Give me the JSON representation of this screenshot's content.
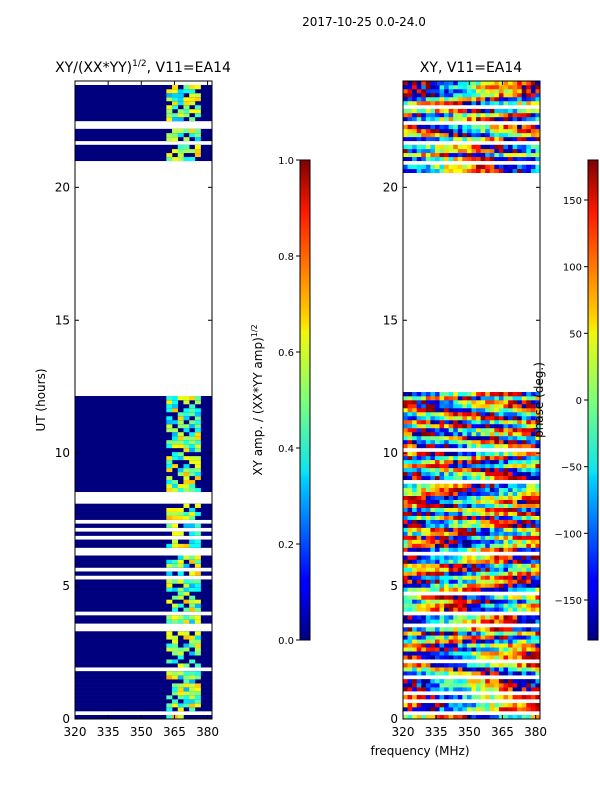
{
  "suptitle": "2017-10-25 0.0-24.0",
  "chart_data": [
    {
      "type": "heatmap",
      "title_main": "XY/(XX*YY)",
      "title_sup": "1/2",
      "title_suffix": ", V11=EA14",
      "xlabel": "",
      "ylabel": "UT (hours)",
      "xlim": [
        320,
        382
      ],
      "ylim": [
        0,
        24
      ],
      "xticks": [
        320,
        335,
        350,
        365,
        380
      ],
      "yticks": [
        0,
        5,
        10,
        15,
        20
      ],
      "data_gap_hours": [
        12.3,
        20.5
      ],
      "colorbar": {
        "label_main": "XY amp. / (XX*YY amp)",
        "label_sup": "1/2",
        "range": [
          0.0,
          1.0
        ],
        "ticks": [
          "0.0",
          "0.2",
          "0.4",
          "0.6",
          "0.8",
          "1.0"
        ]
      }
    },
    {
      "type": "heatmap",
      "title": "XY, V11=EA14",
      "xlabel": "frequency (MHz)",
      "ylabel": "",
      "xlim": [
        320,
        382
      ],
      "ylim": [
        0,
        24
      ],
      "xticks": [
        320,
        335,
        350,
        365,
        380
      ],
      "yticks": [
        0,
        5,
        10,
        15,
        20
      ],
      "data_gap_hours": [
        12.3,
        20.5
      ],
      "colorbar": {
        "label": "phase (deg.)",
        "range": [
          -180,
          180
        ],
        "ticks": [
          "−150",
          "−100",
          "−50",
          "0",
          "50",
          "100",
          "150"
        ]
      }
    }
  ]
}
